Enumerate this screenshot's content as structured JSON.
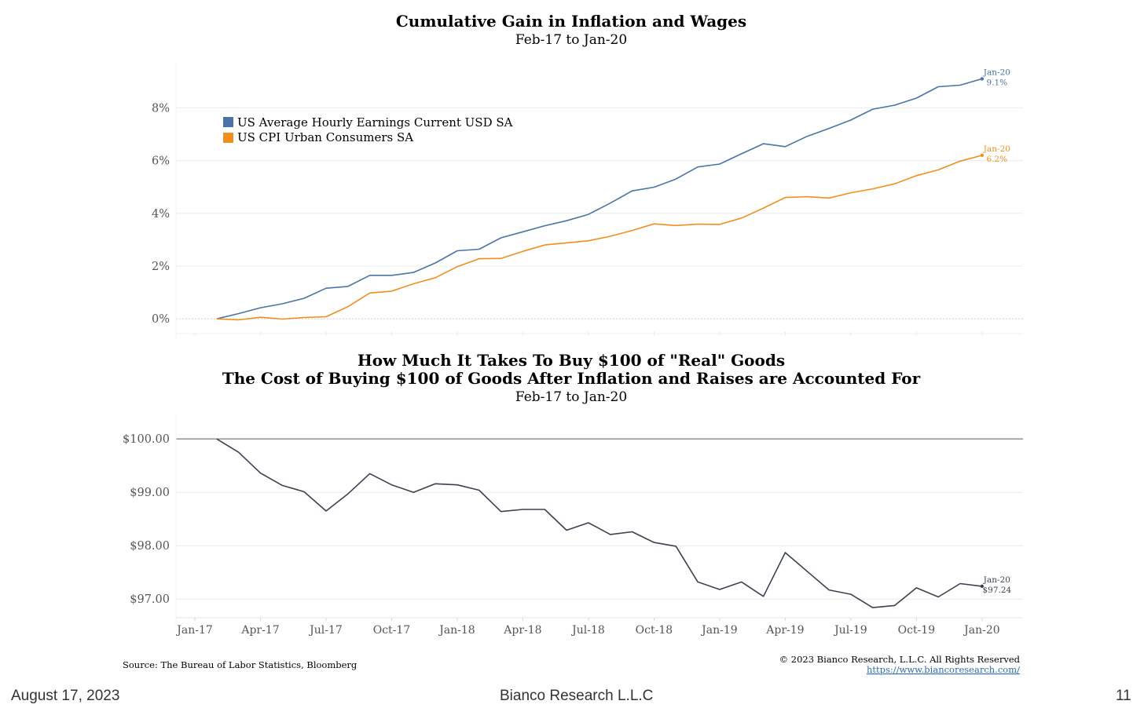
{
  "top_chart": {
    "title": "Cumulative Gain in Inflation and Wages",
    "subtitle": "Feb-17 to Jan-20"
  },
  "bottom_chart": {
    "title_line1": "How Much It Takes To Buy $100 of \"Real\" Goods",
    "title_line2": "The Cost of Buying $100 of Goods After Inflation and Raises are Accounted For",
    "subtitle": "Feb-17 to Jan-20"
  },
  "source": "Source: The Bureau of Labor Statistics, Bloomberg",
  "copyright": "© 2023 Bianco Research, L.L.C. All Rights Reserved",
  "website": "https://www.biancoresearch.com/",
  "footer": {
    "date": "August 17, 2023",
    "company": "Bianco Research L.L.C",
    "page": "11"
  },
  "colors": {
    "wages": "#4a74a8",
    "cpi": "#f28e1e",
    "real": "#3a4250",
    "grid": "#ececec",
    "axis": "#555555"
  },
  "chart_data": [
    {
      "type": "line",
      "title": "Cumulative Gain in Inflation and Wages",
      "subtitle": "Feb-17 to Jan-20",
      "x_start": "Feb-17",
      "x": [
        "Feb-17",
        "Mar-17",
        "Apr-17",
        "May-17",
        "Jun-17",
        "Jul-17",
        "Aug-17",
        "Sep-17",
        "Oct-17",
        "Nov-17",
        "Dec-17",
        "Jan-18",
        "Feb-18",
        "Mar-18",
        "Apr-18",
        "May-18",
        "Jun-18",
        "Jul-18",
        "Aug-18",
        "Sep-18",
        "Oct-18",
        "Nov-18",
        "Dec-18",
        "Jan-19",
        "Feb-19",
        "Mar-19",
        "Apr-19",
        "May-19",
        "Jun-19",
        "Jul-19",
        "Aug-19",
        "Sep-19",
        "Oct-19",
        "Nov-19",
        "Dec-19",
        "Jan-20"
      ],
      "ylim": [
        -0.5,
        9.5
      ],
      "yticks": [
        {
          "value": 0,
          "label": "0%"
        },
        {
          "value": 2,
          "label": "2%"
        },
        {
          "value": 4,
          "label": "4%"
        },
        {
          "value": 6,
          "label": "6%"
        },
        {
          "value": 8,
          "label": "8%"
        }
      ],
      "legend_position": "top-left",
      "series": [
        {
          "name": "US Average Hourly Earnings Current USD SA",
          "color": "#4a74a8",
          "values": [
            0,
            0.2,
            0.42,
            0.57,
            0.78,
            1.16,
            1.23,
            1.65,
            1.65,
            1.76,
            2.12,
            2.58,
            2.64,
            3.07,
            3.3,
            3.53,
            3.72,
            3.96,
            4.39,
            4.85,
            4.99,
            5.3,
            5.76,
            5.87,
            6.26,
            6.64,
            6.53,
            6.92,
            7.22,
            7.54,
            7.95,
            8.1,
            8.37,
            8.8,
            8.86,
            9.1
          ],
          "end_label_date": "Jan-20",
          "end_label_value": "9.1%"
        },
        {
          "name": "US CPI Urban Consumers SA",
          "color": "#f28e1e",
          "values": [
            0,
            -0.04,
            0.06,
            -0.01,
            0.05,
            0.08,
            0.46,
            0.98,
            1.05,
            1.33,
            1.56,
            1.98,
            2.28,
            2.29,
            2.56,
            2.8,
            2.88,
            2.96,
            3.13,
            3.35,
            3.6,
            3.54,
            3.59,
            3.58,
            3.82,
            4.2,
            4.6,
            4.63,
            4.58,
            4.78,
            4.93,
            5.12,
            5.43,
            5.65,
            5.98,
            6.2
          ],
          "end_label_date": "Jan-20",
          "end_label_value": "6.2%"
        }
      ]
    },
    {
      "type": "line",
      "title": "How Much It Takes To Buy $100 of \"Real\" Goods",
      "subtitle": "The Cost of Buying $100 of Goods After Inflation and Raises are Accounted For",
      "date_range": "Feb-17 to Jan-20",
      "x": [
        "Feb-17",
        "Mar-17",
        "Apr-17",
        "May-17",
        "Jun-17",
        "Jul-17",
        "Aug-17",
        "Sep-17",
        "Oct-17",
        "Nov-17",
        "Dec-17",
        "Jan-18",
        "Feb-18",
        "Mar-18",
        "Apr-18",
        "May-18",
        "Jun-18",
        "Jul-18",
        "Aug-18",
        "Sep-18",
        "Oct-18",
        "Nov-18",
        "Dec-18",
        "Jan-19",
        "Feb-19",
        "Mar-19",
        "Apr-19",
        "May-19",
        "Jun-19",
        "Jul-19",
        "Aug-19",
        "Sep-19",
        "Oct-19",
        "Nov-19",
        "Dec-19",
        "Jan-20"
      ],
      "ylim": [
        96.65,
        100.4
      ],
      "yticks": [
        {
          "value": 97,
          "label": "$97.00"
        },
        {
          "value": 98,
          "label": "$98.00"
        },
        {
          "value": 99,
          "label": "$99.00"
        },
        {
          "value": 100,
          "label": "$100.00"
        }
      ],
      "reference_line": 100,
      "series": [
        {
          "color": "#3a4250",
          "values": [
            100.0,
            99.75,
            99.36,
            99.13,
            99.01,
            98.65,
            98.97,
            99.35,
            99.14,
            99.0,
            99.16,
            99.14,
            99.04,
            98.64,
            98.68,
            98.68,
            98.29,
            98.43,
            98.21,
            98.26,
            98.06,
            97.99,
            97.32,
            97.18,
            97.32,
            97.05,
            97.87,
            97.52,
            97.17,
            97.09,
            96.84,
            96.88,
            97.21,
            97.04,
            97.29,
            97.24
          ],
          "end_label_date": "Jan-20",
          "end_label_value": "$97.24"
        }
      ],
      "x_tick_labels": [
        "Jan-17",
        "Apr-17",
        "Jul-17",
        "Oct-17",
        "Jan-18",
        "Apr-18",
        "Jul-18",
        "Oct-18",
        "Jan-19",
        "Apr-19",
        "Jul-19",
        "Oct-19",
        "Jan-20"
      ]
    }
  ]
}
